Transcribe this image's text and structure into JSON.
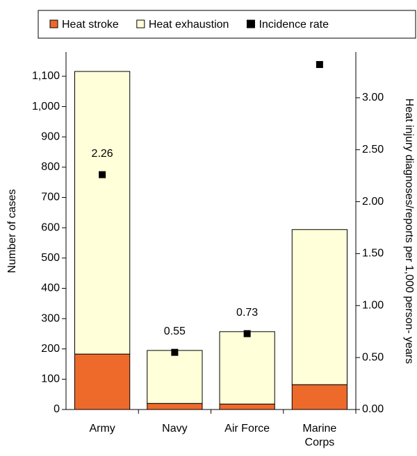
{
  "chart_data": {
    "type": "bar",
    "stacked": true,
    "y_label": "Number of cases",
    "y2_label": "Heat injury diagnoses/reports per 1,000 person- years",
    "categories": [
      "Army",
      "Navy",
      "Air Force",
      "Marine Corps"
    ],
    "series": [
      {
        "name": "Heat stroke",
        "color": "#ee6a2b",
        "values": [
          183,
          20,
          18,
          82
        ]
      },
      {
        "name": "Heat exhaustion",
        "color": "#ffffd9",
        "values": [
          933,
          175,
          239,
          512
        ]
      },
      {
        "name": "Incidence rate",
        "color": "#000000",
        "axis": "y2",
        "marker": "square",
        "values": [
          2.26,
          0.55,
          0.73,
          3.32
        ],
        "value_labels": [
          "2.26",
          "0.55",
          "0.73",
          null
        ]
      }
    ],
    "ylim": [
      0,
      1180
    ],
    "yticks": [
      0,
      100,
      200,
      300,
      400,
      500,
      600,
      700,
      800,
      900,
      {
        "value": 1000,
        "label": "1,000"
      },
      {
        "value": 1100,
        "label": "1,100"
      }
    ],
    "y2lim": [
      0,
      3.44
    ],
    "y2ticks": [
      {
        "value": 0,
        "label": "0.00"
      },
      {
        "value": 0.5,
        "label": "0.50"
      },
      {
        "value": 1,
        "label": "1.00"
      },
      {
        "value": 1.5,
        "label": "1.50"
      },
      {
        "value": 2,
        "label": "2.00"
      },
      {
        "value": 2.5,
        "label": "2.50"
      },
      {
        "value": 3,
        "label": "3.00"
      }
    ],
    "legend": "top"
  }
}
